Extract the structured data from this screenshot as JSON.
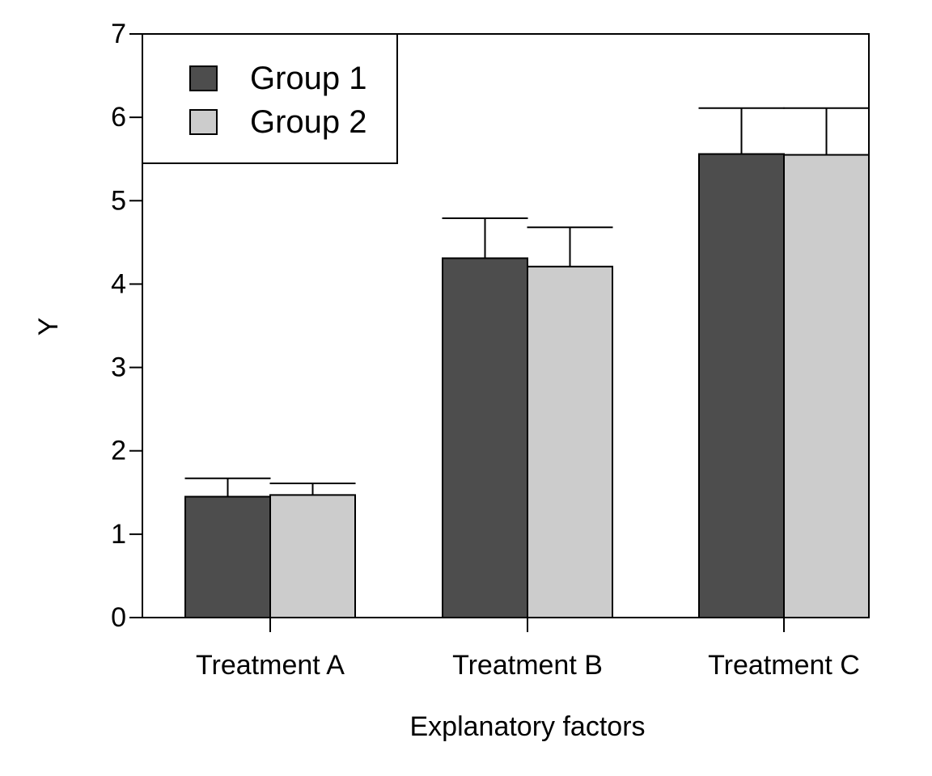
{
  "chart_data": {
    "type": "bar",
    "title": "",
    "xlabel": "Explanatory factors",
    "ylabel": "Y",
    "categories": [
      "Treatment A",
      "Treatment B",
      "Treatment C"
    ],
    "series": [
      {
        "name": "Group 1",
        "color": "#4d4d4d",
        "values": [
          1.45,
          4.31,
          5.56
        ],
        "error_upper": [
          1.67,
          4.79,
          6.11
        ]
      },
      {
        "name": "Group 2",
        "color": "#cccccc",
        "values": [
          1.47,
          4.21,
          5.55
        ],
        "error_upper": [
          1.61,
          4.68,
          6.11
        ]
      }
    ],
    "ylim": [
      0,
      7
    ],
    "yticks": [
      "0",
      "1",
      "2",
      "3",
      "4",
      "5",
      "6",
      "7"
    ],
    "legend": {
      "position": "top-left",
      "boxed": true
    },
    "grid": false
  }
}
